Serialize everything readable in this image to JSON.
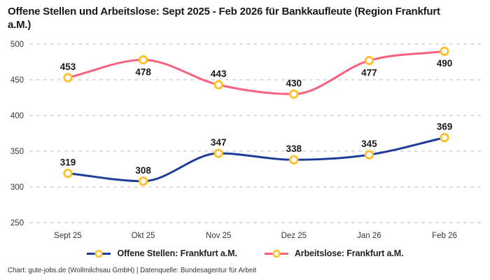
{
  "title": "Offene Stellen und Arbeitslose: Sept 2025 - Feb 2026 für Bankkaufleute (Region Frankfurt a.M.)",
  "footer": "Chart: gute-jobs.de (Wollmilchsau GmbH) | Datenquelle: Bundesagentur für Arbeit",
  "colors": {
    "grid": "#cbcbcb",
    "tick_text": "#363636",
    "data_label": "#1a1a1a",
    "marker_stroke": "#ffc233",
    "marker_fill": "#ffffff"
  },
  "chart_data": {
    "type": "line",
    "title": "Offene Stellen und Arbeitslose: Sept 2025 - Feb 2026 für Bankkaufleute (Region Frankfurt a.M.)",
    "categories": [
      "Sept 25",
      "Okt 25",
      "Nov 25",
      "Dez 25",
      "Jan 26",
      "Feb 26"
    ],
    "series": [
      {
        "name": "Offene Stellen: Frankfurt a.M.",
        "color": "#1e3d9b",
        "values": [
          319,
          308,
          347,
          338,
          345,
          369
        ],
        "label_positions": [
          "above",
          "above",
          "above",
          "above",
          "above",
          "above"
        ]
      },
      {
        "name": "Arbeitslose: Frankfurt a.M.",
        "color": "#f8617e",
        "values": [
          453,
          478,
          443,
          430,
          477,
          490
        ],
        "label_positions": [
          "above",
          "below",
          "above",
          "above",
          "below",
          "below"
        ]
      }
    ],
    "ylim": [
      250,
      500
    ],
    "yticks": [
      250,
      300,
      350,
      400,
      450,
      500
    ],
    "grid": "horizontal-dashed",
    "curve": "monotone",
    "legend_position": "bottom",
    "xlabel": "",
    "ylabel": ""
  }
}
